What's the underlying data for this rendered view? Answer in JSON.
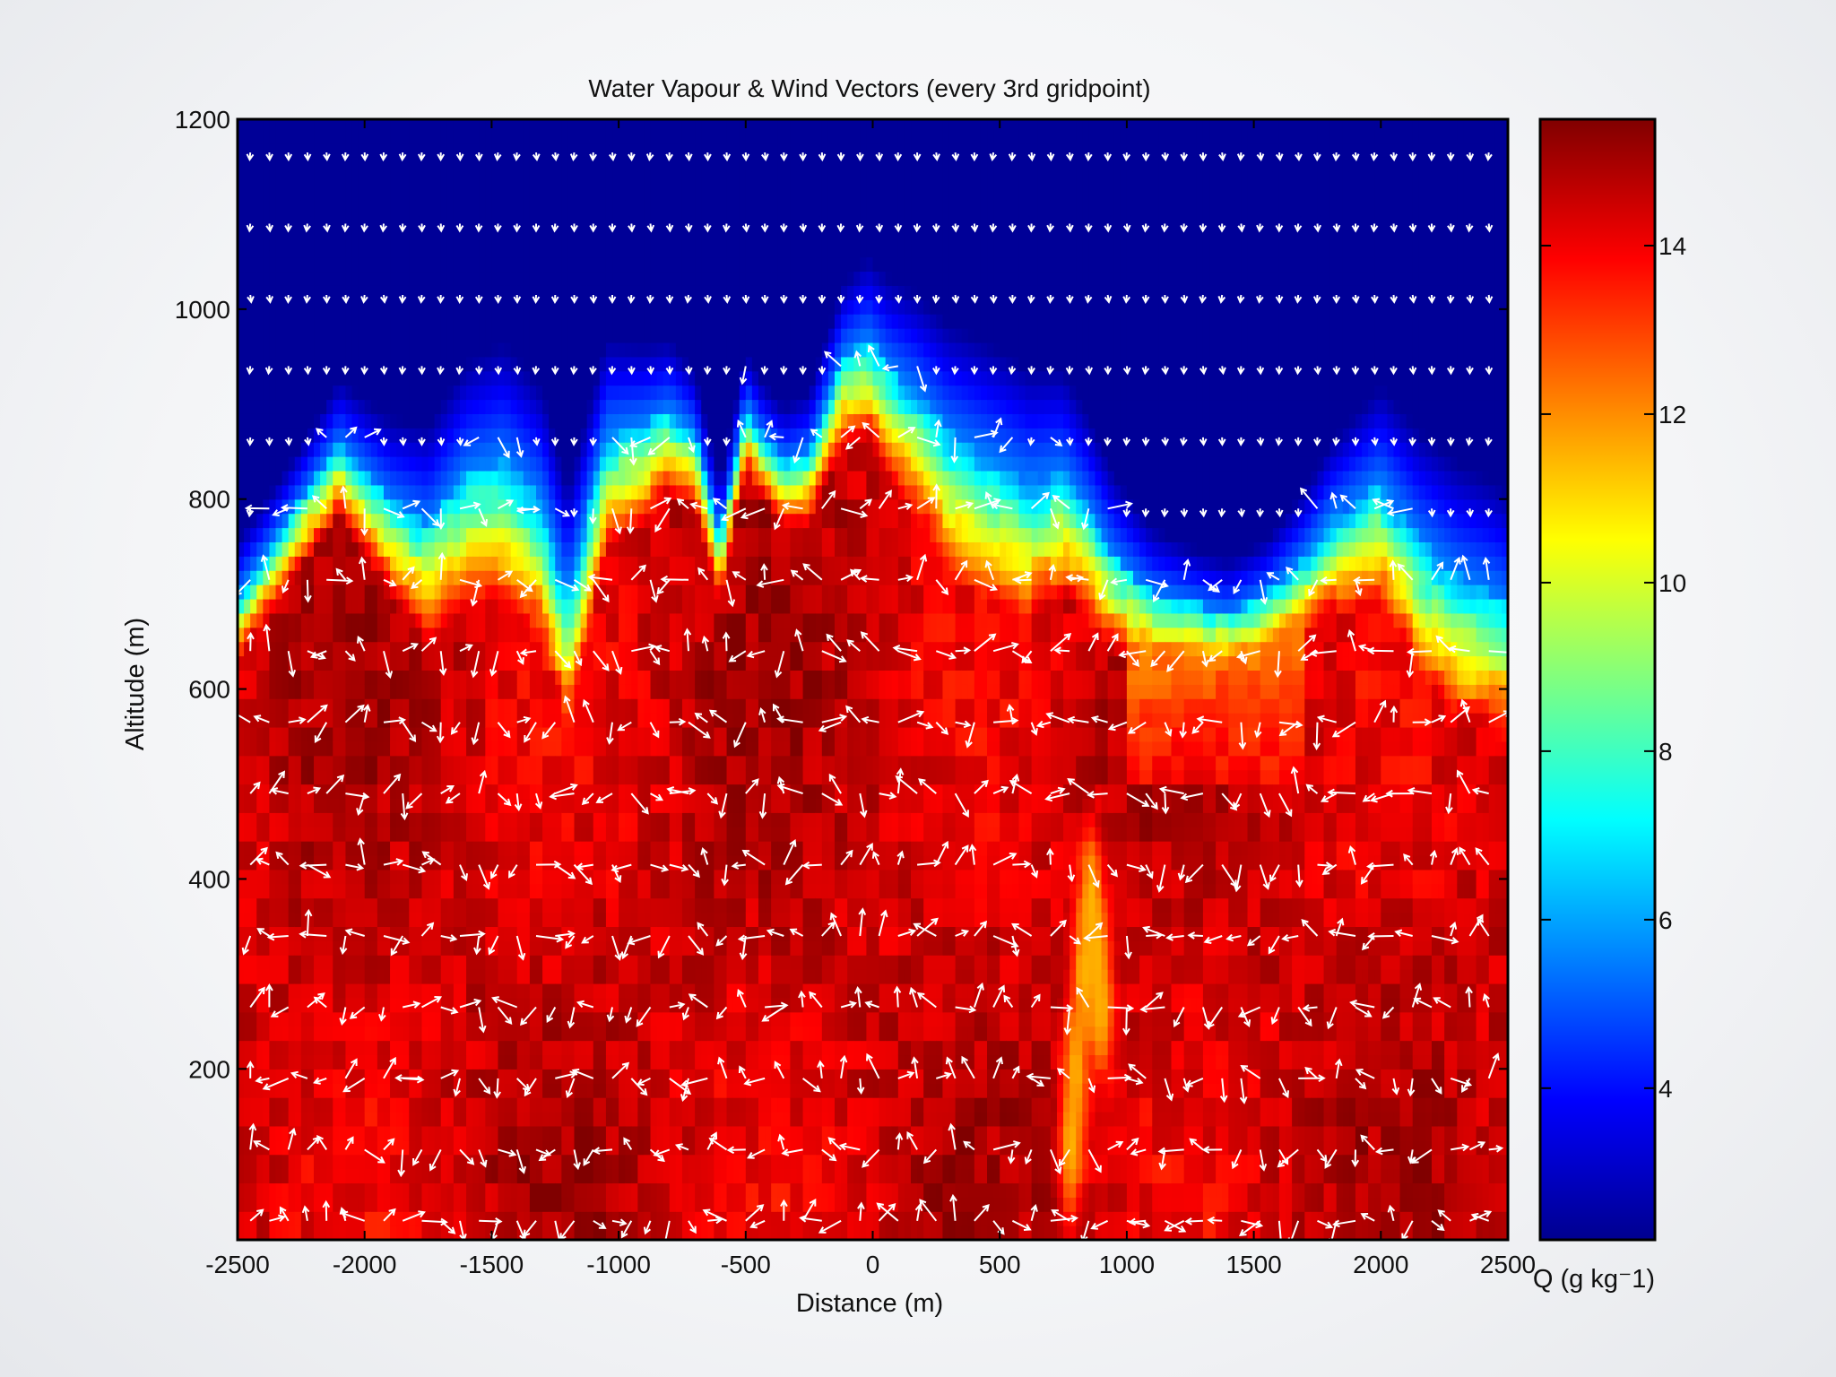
{
  "chart_data": {
    "type": "heatmap",
    "title": "Water Vapour & Wind Vectors (every 3rd gridpoint)",
    "xlabel": "Distance (m)",
    "ylabel": "Altitude (m)",
    "xlim": [
      -2500,
      2500
    ],
    "ylim": [
      20,
      1200
    ],
    "x_ticks": [
      -2500,
      -2000,
      -1500,
      -1000,
      -500,
      0,
      500,
      1000,
      1500,
      2000,
      2500
    ],
    "y_ticks": [
      200,
      400,
      600,
      800,
      1000,
      1200
    ],
    "colorbar": {
      "label": "Q (g kg⁻1)",
      "range": [
        2.2,
        15.5
      ],
      "ticks": [
        4,
        6,
        8,
        10,
        12,
        14
      ],
      "colormap": "jet"
    },
    "moisture_top_profile": {
      "x": [
        -2500,
        -2350,
        -2100,
        -1900,
        -1750,
        -1600,
        -1450,
        -1300,
        -1200,
        -1050,
        -900,
        -800,
        -700,
        -600,
        -500,
        -440,
        -350,
        -250,
        -120,
        -20,
        60,
        180,
        300,
        420,
        520,
        620,
        750,
        850,
        950,
        1100,
        1250,
        1400,
        1550,
        1700,
        1800,
        1900,
        2000,
        2150,
        2300,
        2450,
        2500
      ],
      "y": [
        700,
        760,
        860,
        800,
        775,
        830,
        845,
        800,
        700,
        870,
        880,
        895,
        870,
        760,
        900,
        870,
        840,
        850,
        950,
        970,
        940,
        910,
        870,
        850,
        835,
        820,
        830,
        790,
        740,
        700,
        690,
        680,
        700,
        740,
        780,
        800,
        820,
        760,
        720,
        700,
        690
      ]
    },
    "dry_tongue": {
      "x": [
        900,
        880,
        860,
        830,
        800,
        780
      ],
      "y": [
        260,
        320,
        380,
        300,
        200,
        120
      ],
      "value": 11.5
    },
    "values_description_ranges": {
      "upper_dry_layer_Q": 2.5,
      "boundary_layer_Q": 14.5
    },
    "wind_vectors": {
      "spacing_note": "every 3rd gridpoint",
      "color": "#ffffff"
    }
  }
}
